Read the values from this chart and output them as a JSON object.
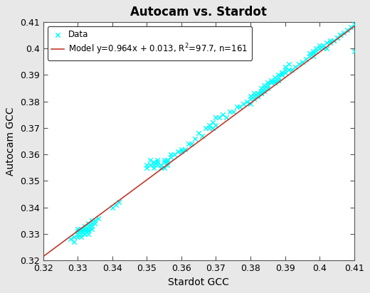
{
  "title": "Autocam vs. Stardot",
  "xlabel": "Stardot GCC",
  "ylabel": "Autocam GCC",
  "xlim": [
    0.32,
    0.41
  ],
  "ylim": [
    0.32,
    0.41
  ],
  "xticks": [
    0.32,
    0.33,
    0.34,
    0.35,
    0.36,
    0.37,
    0.38,
    0.39,
    0.4,
    0.41
  ],
  "yticks": [
    0.32,
    0.33,
    0.34,
    0.35,
    0.36,
    0.37,
    0.38,
    0.39,
    0.4,
    0.41
  ],
  "xtick_labels": [
    "0.32",
    "0.33",
    "0.34",
    "0.35",
    "0.36",
    "0.37",
    "0.38",
    "0.39",
    "0.4",
    "0.41"
  ],
  "ytick_labels": [
    "0.32",
    "0.33",
    "0.34",
    "0.35",
    "0.36",
    "0.37",
    "0.38",
    "0.39",
    "0.4",
    "0.41"
  ],
  "model_slope": 0.964,
  "model_intercept": 0.013,
  "model_r2": "97.7",
  "model_n": 161,
  "scatter_color": "#00FFFF",
  "line_color": "#C0392B",
  "bg_color": "#E8E8E8",
  "plot_bg_color": "#FFFFFF",
  "title_fontsize": 12,
  "label_fontsize": 10,
  "tick_fontsize": 9,
  "legend_fontsize": 8.5,
  "data_x": [
    0.328,
    0.329,
    0.329,
    0.33,
    0.33,
    0.33,
    0.33,
    0.33,
    0.33,
    0.33,
    0.331,
    0.331,
    0.331,
    0.331,
    0.331,
    0.331,
    0.332,
    0.332,
    0.332,
    0.332,
    0.332,
    0.332,
    0.333,
    0.333,
    0.333,
    0.333,
    0.333,
    0.333,
    0.333,
    0.334,
    0.334,
    0.334,
    0.334,
    0.334,
    0.335,
    0.335,
    0.336,
    0.34,
    0.341,
    0.342,
    0.35,
    0.35,
    0.351,
    0.351,
    0.352,
    0.352,
    0.352,
    0.353,
    0.353,
    0.353,
    0.354,
    0.354,
    0.355,
    0.355,
    0.355,
    0.356,
    0.356,
    0.356,
    0.357,
    0.357,
    0.358,
    0.359,
    0.36,
    0.36,
    0.361,
    0.362,
    0.363,
    0.364,
    0.365,
    0.366,
    0.367,
    0.368,
    0.368,
    0.369,
    0.369,
    0.37,
    0.37,
    0.371,
    0.372,
    0.373,
    0.374,
    0.375,
    0.376,
    0.377,
    0.378,
    0.379,
    0.38,
    0.38,
    0.38,
    0.381,
    0.381,
    0.381,
    0.382,
    0.382,
    0.382,
    0.382,
    0.383,
    0.383,
    0.383,
    0.383,
    0.384,
    0.384,
    0.384,
    0.384,
    0.385,
    0.385,
    0.385,
    0.385,
    0.386,
    0.386,
    0.386,
    0.387,
    0.387,
    0.387,
    0.388,
    0.388,
    0.388,
    0.388,
    0.389,
    0.389,
    0.389,
    0.389,
    0.39,
    0.39,
    0.39,
    0.391,
    0.391,
    0.392,
    0.393,
    0.394,
    0.395,
    0.396,
    0.397,
    0.397,
    0.398,
    0.398,
    0.398,
    0.399,
    0.399,
    0.4,
    0.4,
    0.4,
    0.401,
    0.401,
    0.401,
    0.402,
    0.402,
    0.403,
    0.403,
    0.404,
    0.404,
    0.405,
    0.405,
    0.406,
    0.406,
    0.407,
    0.408,
    0.409,
    0.41,
    0.41,
    0.411
  ],
  "data_y": [
    0.328,
    0.327,
    0.329,
    0.33,
    0.33,
    0.33,
    0.331,
    0.332,
    0.33,
    0.329,
    0.33,
    0.331,
    0.33,
    0.332,
    0.329,
    0.331,
    0.332,
    0.331,
    0.33,
    0.332,
    0.33,
    0.333,
    0.332,
    0.333,
    0.331,
    0.333,
    0.334,
    0.332,
    0.33,
    0.334,
    0.333,
    0.335,
    0.334,
    0.332,
    0.335,
    0.334,
    0.336,
    0.34,
    0.341,
    0.342,
    0.356,
    0.355,
    0.356,
    0.358,
    0.355,
    0.356,
    0.357,
    0.356,
    0.357,
    0.358,
    0.355,
    0.356,
    0.355,
    0.357,
    0.358,
    0.357,
    0.358,
    0.356,
    0.359,
    0.36,
    0.36,
    0.361,
    0.361,
    0.362,
    0.362,
    0.364,
    0.364,
    0.366,
    0.368,
    0.367,
    0.37,
    0.37,
    0.371,
    0.372,
    0.37,
    0.374,
    0.371,
    0.374,
    0.375,
    0.374,
    0.376,
    0.376,
    0.378,
    0.378,
    0.379,
    0.38,
    0.381,
    0.379,
    0.382,
    0.382,
    0.381,
    0.383,
    0.382,
    0.382,
    0.383,
    0.383,
    0.384,
    0.383,
    0.385,
    0.383,
    0.385,
    0.385,
    0.384,
    0.386,
    0.386,
    0.385,
    0.386,
    0.387,
    0.387,
    0.388,
    0.387,
    0.387,
    0.389,
    0.388,
    0.388,
    0.39,
    0.388,
    0.389,
    0.391,
    0.39,
    0.39,
    0.391,
    0.391,
    0.392,
    0.393,
    0.392,
    0.394,
    0.392,
    0.393,
    0.394,
    0.395,
    0.396,
    0.397,
    0.398,
    0.398,
    0.397,
    0.399,
    0.399,
    0.4,
    0.4,
    0.4,
    0.401,
    0.4,
    0.401,
    0.401,
    0.402,
    0.4,
    0.403,
    0.402,
    0.403,
    0.403,
    0.404,
    0.404,
    0.405,
    0.405,
    0.406,
    0.407,
    0.408,
    0.409,
    0.399,
    0.41
  ]
}
